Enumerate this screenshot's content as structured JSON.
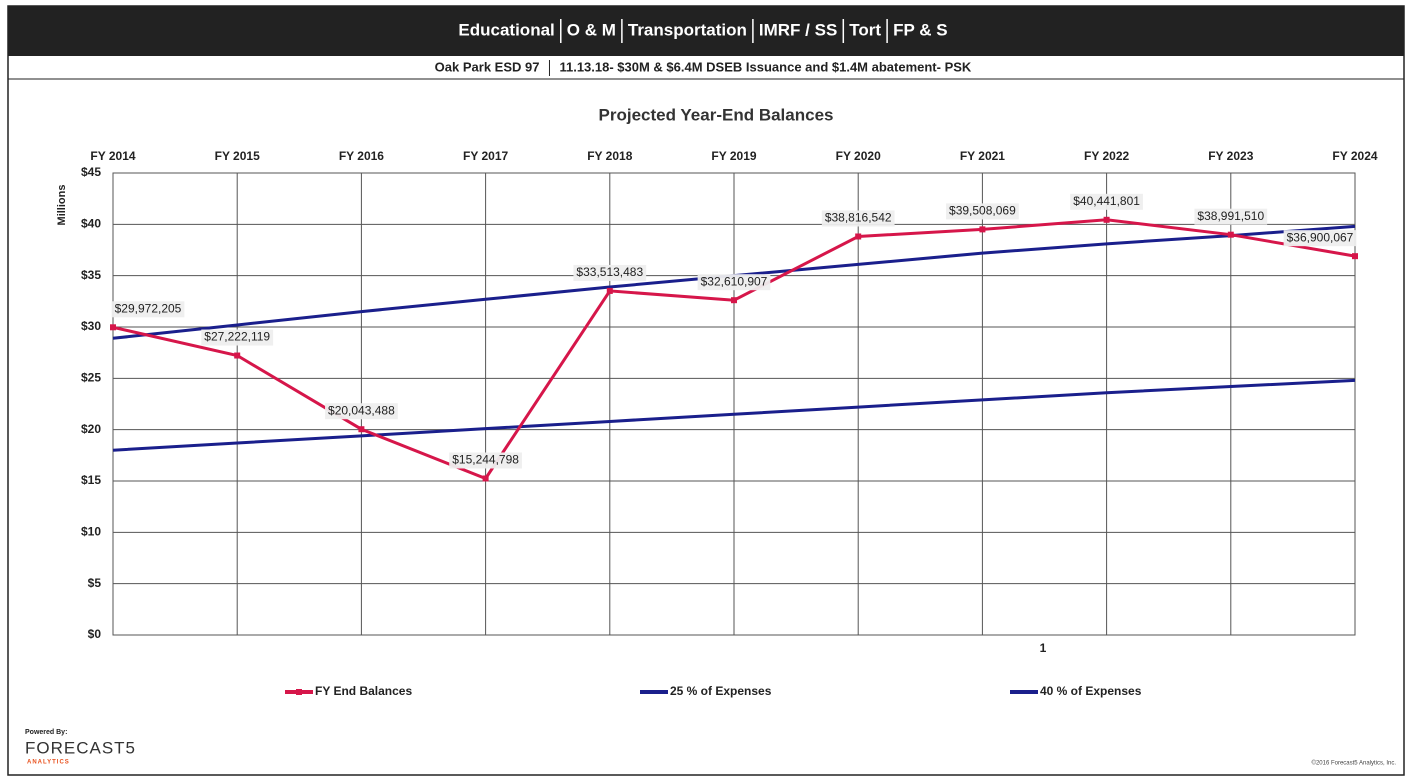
{
  "header": {
    "tabs": [
      "Educational",
      "O & M",
      "Transportation",
      "IMRF / SS",
      "Tort",
      "FP & S"
    ],
    "subtitle": [
      "Oak Park ESD 97",
      "11.13.18- $30M & $6.4M DSEB Issuance and $1.4M abatement- PSK"
    ]
  },
  "chart_data": {
    "type": "line",
    "title": "Projected Year-End Balances",
    "y_label": "Millions",
    "annotation": "1",
    "categories": [
      "FY 2014",
      "FY 2015",
      "FY 2016",
      "FY 2017",
      "FY 2018",
      "FY 2019",
      "FY 2020",
      "FY 2021",
      "FY 2022",
      "FY 2023",
      "FY 2024"
    ],
    "series": [
      {
        "name": "FY End Balances",
        "color": "#d6164a",
        "marker": true,
        "values": [
          29.972205,
          27.222119,
          20.043488,
          15.244798,
          33.513483,
          32.610907,
          38.816542,
          39.508069,
          40.441801,
          38.99151,
          36.900067
        ],
        "value_labels": [
          "$29,972,205",
          "$27,222,119",
          "$20,043,488",
          "$15,244,798",
          "$33,513,483",
          "$32,610,907",
          "$38,816,542",
          "$39,508,069",
          "$40,441,801",
          "$38,991,510",
          "$36,900,067"
        ]
      },
      {
        "name": "25 % of Expenses",
        "color": "#1a1f8c",
        "marker": false,
        "values": [
          18.0,
          18.7,
          19.4,
          20.1,
          20.8,
          21.5,
          22.2,
          22.9,
          23.6,
          24.2,
          24.8
        ]
      },
      {
        "name": "40 % of Expenses",
        "color": "#1a1f8c",
        "marker": false,
        "values": [
          28.9,
          30.2,
          31.5,
          32.7,
          33.9,
          35.0,
          36.1,
          37.2,
          38.1,
          38.9,
          39.8
        ]
      }
    ],
    "ylim": [
      0,
      45
    ],
    "yticks": [
      {
        "value": 0,
        "label": "$0"
      },
      {
        "value": 5,
        "label": "$5"
      },
      {
        "value": 10,
        "label": "$10"
      },
      {
        "value": 15,
        "label": "$15"
      },
      {
        "value": 20,
        "label": "$20"
      },
      {
        "value": 25,
        "label": "$25"
      },
      {
        "value": 30,
        "label": "$30"
      },
      {
        "value": 35,
        "label": "$35"
      },
      {
        "value": 40,
        "label": "$40"
      },
      {
        "value": 45,
        "label": "$45"
      }
    ],
    "grid": true
  },
  "footer": {
    "powered": "Powered By:",
    "brand": "FORECAST5",
    "brand_sub": "ANALYTICS",
    "copyright": "©2016 Forecast5 Analytics, Inc."
  }
}
